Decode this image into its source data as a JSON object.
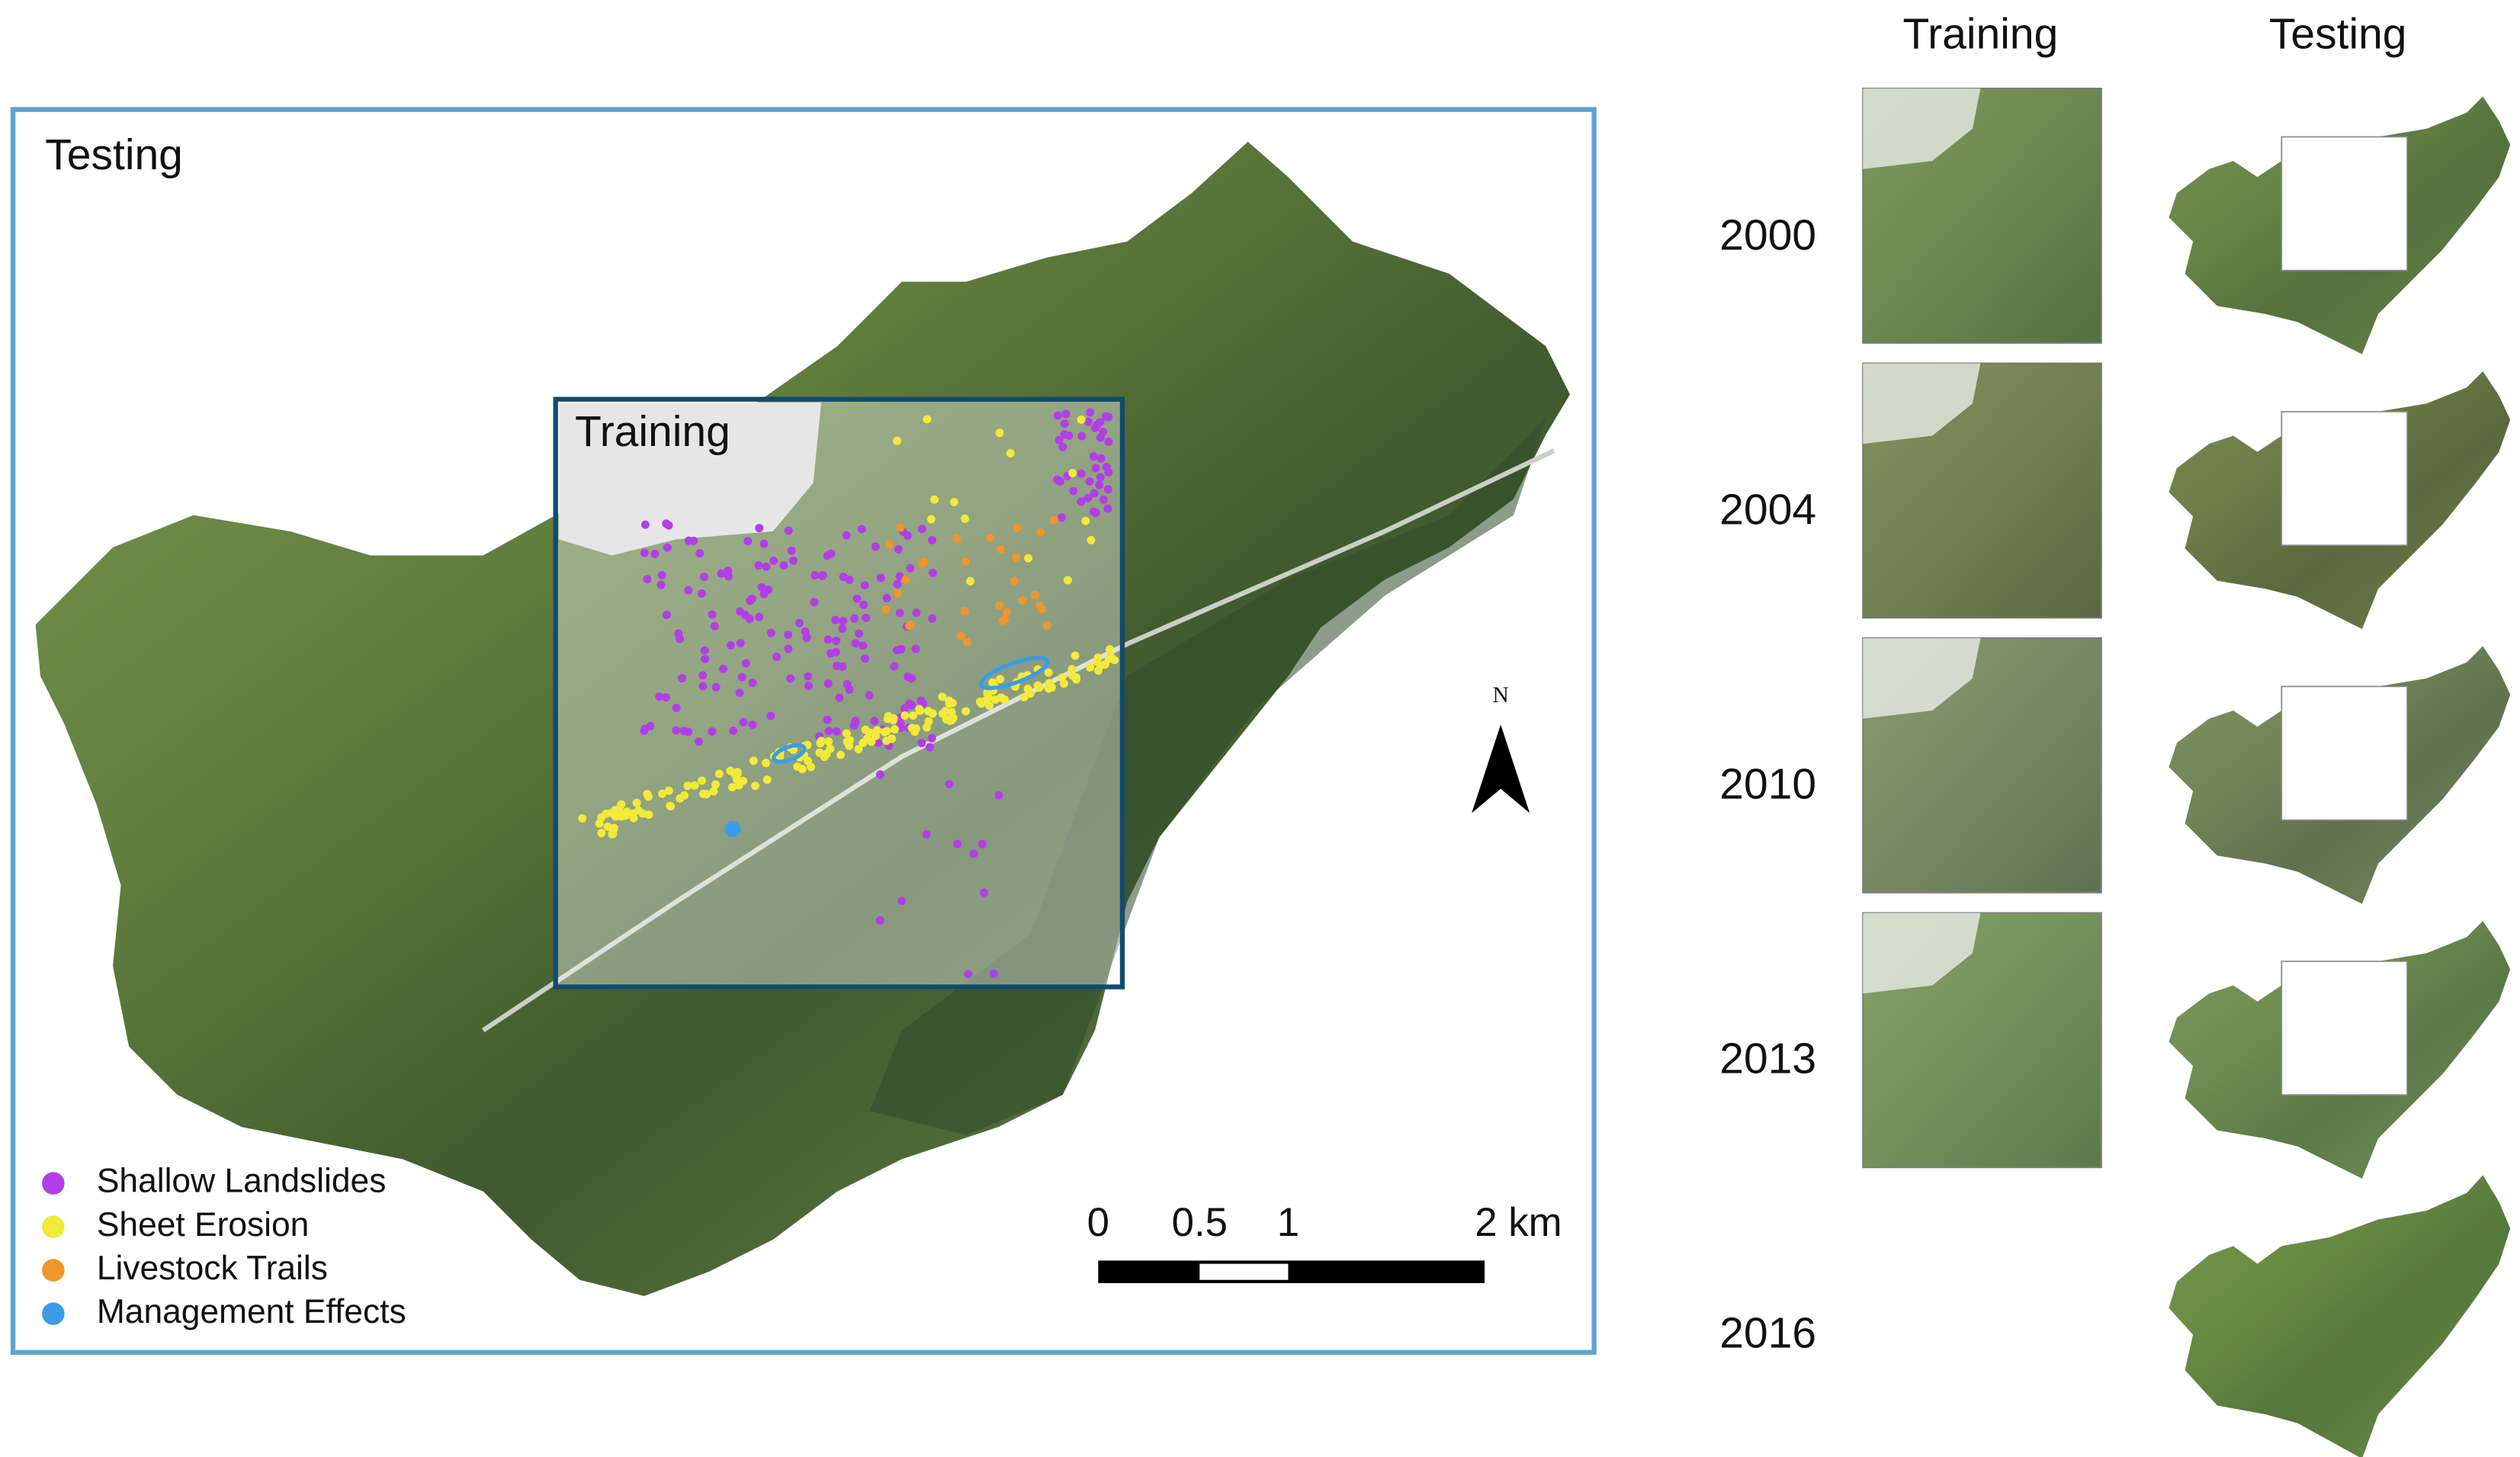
{
  "main_map": {
    "label": "Testing",
    "training_box": {
      "label": "Training"
    },
    "legend": [
      {
        "label": "Shallow Landslides",
        "color": "#b23ee8"
      },
      {
        "label": "Sheet Erosion",
        "color": "#f2ea3a"
      },
      {
        "label": "Livestock Trails",
        "color": "#f0962a"
      },
      {
        "label": "Management Effects",
        "color": "#3a9de8"
      }
    ],
    "scale_bar": {
      "labels": [
        "0",
        "0.5",
        "1",
        "2 km"
      ]
    },
    "north": "N"
  },
  "panel": {
    "columns": [
      "Training",
      "Testing"
    ],
    "years": [
      "2000",
      "2004",
      "2010",
      "2013",
      "2016"
    ]
  }
}
